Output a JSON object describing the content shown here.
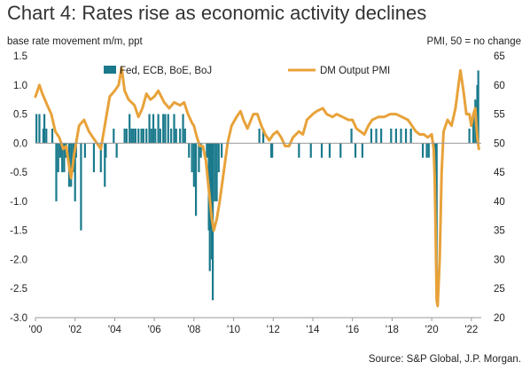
{
  "chart_data": {
    "type": "bar+line",
    "title": "Chart 4: Rates rise as economic activity declines",
    "left_axis_label": "base rate movement m/m, ppt",
    "right_axis_label": "PMI, 50 = no change",
    "source": "Source: S&P Global, J.P. Morgan.",
    "x_range": [
      2000.0,
      2022.5
    ],
    "x_ticks": [
      {
        "x": 2000,
        "label": "'00"
      },
      {
        "x": 2002,
        "label": "'02"
      },
      {
        "x": 2004,
        "label": "'04"
      },
      {
        "x": 2006,
        "label": "'06"
      },
      {
        "x": 2008,
        "label": "'08"
      },
      {
        "x": 2010,
        "label": "'10"
      },
      {
        "x": 2012,
        "label": "'12"
      },
      {
        "x": 2014,
        "label": "'14"
      },
      {
        "x": 2016,
        "label": "'16"
      },
      {
        "x": 2018,
        "label": "'18"
      },
      {
        "x": 2020,
        "label": "'20"
      },
      {
        "x": 2022,
        "label": "'22"
      }
    ],
    "y_left_range": [
      -3.0,
      1.5
    ],
    "y_left_ticks": [
      "1.5",
      "1.0",
      "0.5",
      "0.0",
      "-0.5",
      "-1.0",
      "-1.5",
      "-2.0",
      "-2.5",
      "-3.0"
    ],
    "y_right_range": [
      20,
      65
    ],
    "y_right_ticks": [
      "65",
      "60",
      "55",
      "50",
      "45",
      "40",
      "35",
      "30",
      "25",
      "20"
    ],
    "legend_position": "top",
    "series": [
      {
        "name": "Fed, ECB, BoE, BoJ",
        "type": "bar",
        "axis": "left",
        "color": "#1a7a8c",
        "points": [
          [
            2000.05,
            0.5
          ],
          [
            2000.2,
            0.5
          ],
          [
            2000.4,
            0.25
          ],
          [
            2000.45,
            0.5
          ],
          [
            2000.55,
            0.25
          ],
          [
            2000.85,
            0.25
          ],
          [
            2001.05,
            -1.0
          ],
          [
            2001.15,
            -0.5
          ],
          [
            2001.25,
            -0.25
          ],
          [
            2001.35,
            -0.5
          ],
          [
            2001.45,
            -0.5
          ],
          [
            2001.55,
            -0.25
          ],
          [
            2001.7,
            -0.75
          ],
          [
            2001.8,
            -0.75
          ],
          [
            2001.9,
            -0.5
          ],
          [
            2002.0,
            -1.0
          ],
          [
            2002.05,
            -0.25
          ],
          [
            2002.3,
            -1.5
          ],
          [
            2002.5,
            -0.25
          ],
          [
            2002.95,
            -0.5
          ],
          [
            2003.3,
            -0.5
          ],
          [
            2003.5,
            -0.75
          ],
          [
            2003.55,
            -0.25
          ],
          [
            2003.95,
            0.25
          ],
          [
            2004.1,
            -0.25
          ],
          [
            2004.5,
            0.25
          ],
          [
            2004.6,
            0.25
          ],
          [
            2004.75,
            0.5
          ],
          [
            2004.85,
            0.25
          ],
          [
            2004.95,
            0.25
          ],
          [
            2005.05,
            0.25
          ],
          [
            2005.2,
            0.25
          ],
          [
            2005.35,
            0.25
          ],
          [
            2005.45,
            0.25
          ],
          [
            2005.6,
            0.25
          ],
          [
            2005.75,
            0.5
          ],
          [
            2005.85,
            0.25
          ],
          [
            2005.95,
            0.5
          ],
          [
            2006.05,
            0.25
          ],
          [
            2006.2,
            0.5
          ],
          [
            2006.3,
            0.25
          ],
          [
            2006.45,
            0.5
          ],
          [
            2006.55,
            0.5
          ],
          [
            2006.7,
            0.5
          ],
          [
            2006.85,
            0.25
          ],
          [
            2007.0,
            0.5
          ],
          [
            2007.1,
            0.25
          ],
          [
            2007.3,
            0.25
          ],
          [
            2007.45,
            0.5
          ],
          [
            2007.55,
            0.25
          ],
          [
            2007.75,
            -0.25
          ],
          [
            2007.9,
            -0.5
          ],
          [
            2008.0,
            -0.75
          ],
          [
            2008.1,
            -1.25
          ],
          [
            2008.25,
            -0.5
          ],
          [
            2008.35,
            -0.25
          ],
          [
            2008.65,
            -0.25
          ],
          [
            2008.75,
            -1.5
          ],
          [
            2008.8,
            -2.2
          ],
          [
            2008.85,
            -1.5
          ],
          [
            2008.9,
            -2.0
          ],
          [
            2008.95,
            -2.7
          ],
          [
            2009.05,
            -1.0
          ],
          [
            2009.15,
            -1.0
          ],
          [
            2009.25,
            -0.5
          ],
          [
            2009.4,
            -0.25
          ],
          [
            2011.3,
            0.25
          ],
          [
            2011.5,
            0.25
          ],
          [
            2011.9,
            -0.25
          ],
          [
            2011.95,
            -0.25
          ],
          [
            2013.3,
            -0.25
          ],
          [
            2013.9,
            -0.25
          ],
          [
            2014.45,
            -0.25
          ],
          [
            2014.85,
            -0.25
          ],
          [
            2015.4,
            -0.25
          ],
          [
            2015.95,
            0.25
          ],
          [
            2016.15,
            -0.25
          ],
          [
            2016.5,
            -0.25
          ],
          [
            2016.95,
            0.25
          ],
          [
            2017.2,
            0.25
          ],
          [
            2017.45,
            0.25
          ],
          [
            2017.95,
            0.25
          ],
          [
            2018.2,
            0.25
          ],
          [
            2018.45,
            0.25
          ],
          [
            2018.7,
            0.25
          ],
          [
            2018.95,
            0.25
          ],
          [
            2019.55,
            -0.25
          ],
          [
            2019.75,
            -0.25
          ],
          [
            2019.85,
            -0.25
          ],
          [
            2020.15,
            -0.5
          ],
          [
            2020.2,
            -1.5
          ],
          [
            2020.25,
            -2.5
          ],
          [
            2021.9,
            0.25
          ],
          [
            2022.1,
            0.5
          ],
          [
            2022.2,
            0.75
          ],
          [
            2022.3,
            1.0
          ],
          [
            2022.35,
            1.25
          ]
        ]
      },
      {
        "name": "DM Output PMI",
        "type": "line",
        "axis": "right",
        "color": "#e8a23a",
        "points": [
          [
            2000.0,
            58
          ],
          [
            2000.2,
            60
          ],
          [
            2000.35,
            58.5
          ],
          [
            2000.6,
            56.5
          ],
          [
            2000.8,
            55
          ],
          [
            2001.0,
            52
          ],
          [
            2001.2,
            51
          ],
          [
            2001.4,
            49
          ],
          [
            2001.55,
            49.5
          ],
          [
            2001.7,
            46
          ],
          [
            2001.8,
            44
          ],
          [
            2001.95,
            48
          ],
          [
            2002.2,
            53
          ],
          [
            2002.45,
            54
          ],
          [
            2002.7,
            52
          ],
          [
            2002.9,
            51
          ],
          [
            2003.1,
            50
          ],
          [
            2003.3,
            49
          ],
          [
            2003.5,
            53
          ],
          [
            2003.75,
            58
          ],
          [
            2004.0,
            59
          ],
          [
            2004.2,
            60
          ],
          [
            2004.35,
            63
          ],
          [
            2004.5,
            59
          ],
          [
            2004.7,
            57.5
          ],
          [
            2005.0,
            56.5
          ],
          [
            2005.2,
            54.5
          ],
          [
            2005.4,
            56
          ],
          [
            2005.6,
            58.5
          ],
          [
            2005.8,
            57.5
          ],
          [
            2006.0,
            58
          ],
          [
            2006.2,
            59
          ],
          [
            2006.5,
            57
          ],
          [
            2006.75,
            56
          ],
          [
            2007.0,
            57
          ],
          [
            2007.3,
            56.5
          ],
          [
            2007.5,
            57
          ],
          [
            2007.7,
            55
          ],
          [
            2007.9,
            53.5
          ],
          [
            2008.0,
            53
          ],
          [
            2008.15,
            51
          ],
          [
            2008.3,
            49.5
          ],
          [
            2008.45,
            49.5
          ],
          [
            2008.6,
            47
          ],
          [
            2008.75,
            42
          ],
          [
            2008.9,
            37
          ],
          [
            2009.0,
            35
          ],
          [
            2009.15,
            37
          ],
          [
            2009.3,
            40
          ],
          [
            2009.5,
            45
          ],
          [
            2009.7,
            50
          ],
          [
            2009.9,
            53
          ],
          [
            2010.15,
            54.5
          ],
          [
            2010.35,
            55.5
          ],
          [
            2010.5,
            54
          ],
          [
            2010.7,
            52.5
          ],
          [
            2011.0,
            55
          ],
          [
            2011.2,
            55
          ],
          [
            2011.4,
            53
          ],
          [
            2011.6,
            51.5
          ],
          [
            2011.8,
            50.5
          ],
          [
            2012.0,
            51.5
          ],
          [
            2012.2,
            52
          ],
          [
            2012.4,
            51
          ],
          [
            2012.6,
            49.5
          ],
          [
            2012.8,
            49.5
          ],
          [
            2013.0,
            51
          ],
          [
            2013.3,
            52
          ],
          [
            2013.5,
            51.5
          ],
          [
            2013.7,
            54
          ],
          [
            2014.0,
            55
          ],
          [
            2014.2,
            55.5
          ],
          [
            2014.5,
            56
          ],
          [
            2014.7,
            55
          ],
          [
            2015.0,
            54.5
          ],
          [
            2015.2,
            55
          ],
          [
            2015.5,
            54.5
          ],
          [
            2015.8,
            54
          ],
          [
            2016.0,
            54
          ],
          [
            2016.2,
            52.5
          ],
          [
            2016.4,
            52
          ],
          [
            2016.6,
            51.5
          ],
          [
            2016.8,
            53
          ],
          [
            2017.0,
            54
          ],
          [
            2017.3,
            54.5
          ],
          [
            2017.6,
            54.5
          ],
          [
            2017.9,
            55
          ],
          [
            2018.2,
            55
          ],
          [
            2018.5,
            54.5
          ],
          [
            2018.8,
            54
          ],
          [
            2019.0,
            53
          ],
          [
            2019.2,
            52
          ],
          [
            2019.4,
            51.5
          ],
          [
            2019.6,
            51.5
          ],
          [
            2019.8,
            51
          ],
          [
            2020.0,
            51.5
          ],
          [
            2020.1,
            49
          ],
          [
            2020.15,
            44
          ],
          [
            2020.2,
            34
          ],
          [
            2020.25,
            23
          ],
          [
            2020.3,
            22
          ],
          [
            2020.4,
            30
          ],
          [
            2020.5,
            45
          ],
          [
            2020.6,
            52
          ],
          [
            2020.8,
            54
          ],
          [
            2021.0,
            53
          ],
          [
            2021.2,
            56
          ],
          [
            2021.35,
            60
          ],
          [
            2021.45,
            62.5
          ],
          [
            2021.6,
            59
          ],
          [
            2021.75,
            55
          ],
          [
            2021.9,
            55
          ],
          [
            2022.0,
            53
          ],
          [
            2022.1,
            55
          ],
          [
            2022.2,
            56
          ],
          [
            2022.3,
            51
          ],
          [
            2022.38,
            49
          ]
        ]
      }
    ]
  }
}
